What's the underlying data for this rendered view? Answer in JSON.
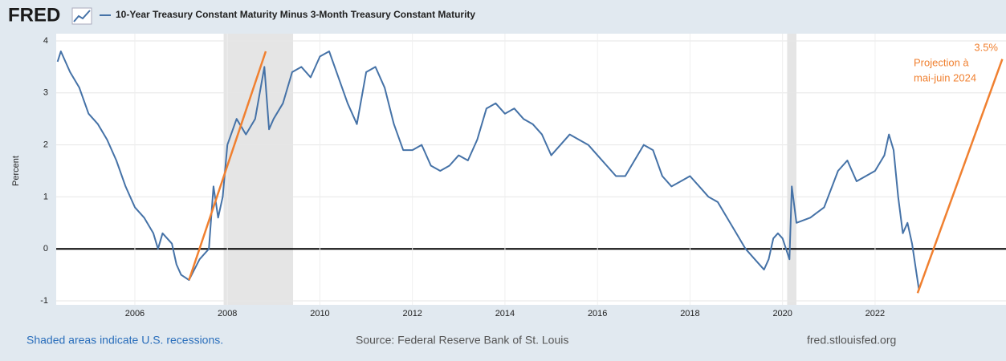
{
  "chart_data": {
    "type": "line",
    "logo": "FRED",
    "ylabel": "Percent",
    "xlim": [
      2004.3,
      2024.83
    ],
    "xticks": [
      2006,
      2008,
      2010,
      2012,
      2014,
      2016,
      2018,
      2020,
      2022
    ],
    "ylim": [
      -1,
      4
    ],
    "yticks": [
      -1,
      0,
      1,
      2,
      3,
      4
    ],
    "grid": true,
    "recessions": [
      [
        2007.92,
        2009.42
      ],
      [
        2020.1,
        2020.3
      ]
    ],
    "series": [
      {
        "name": "10-Year Treasury Constant Maturity Minus 3-Month Treasury Constant Maturity",
        "color": "#4572a7",
        "x": [
          2004.33,
          2004.4,
          2004.6,
          2004.8,
          2005.0,
          2005.2,
          2005.4,
          2005.6,
          2005.8,
          2006.0,
          2006.2,
          2006.4,
          2006.5,
          2006.6,
          2006.8,
          2006.9,
          2007.0,
          2007.17,
          2007.4,
          2007.6,
          2007.7,
          2007.8,
          2007.9,
          2008.0,
          2008.2,
          2008.4,
          2008.6,
          2008.8,
          2008.9,
          2009.0,
          2009.2,
          2009.4,
          2009.6,
          2009.8,
          2010.0,
          2010.2,
          2010.4,
          2010.6,
          2010.8,
          2011.0,
          2011.2,
          2011.4,
          2011.6,
          2011.8,
          2012.0,
          2012.2,
          2012.4,
          2012.6,
          2012.8,
          2013.0,
          2013.2,
          2013.4,
          2013.6,
          2013.8,
          2014.0,
          2014.2,
          2014.4,
          2014.6,
          2014.8,
          2015.0,
          2015.2,
          2015.4,
          2015.6,
          2015.8,
          2016.0,
          2016.2,
          2016.4,
          2016.6,
          2016.8,
          2017.0,
          2017.2,
          2017.4,
          2017.6,
          2017.8,
          2018.0,
          2018.2,
          2018.4,
          2018.6,
          2018.8,
          2019.0,
          2019.2,
          2019.4,
          2019.6,
          2019.7,
          2019.8,
          2019.9,
          2020.0,
          2020.15,
          2020.2,
          2020.3,
          2020.6,
          2020.9,
          2021.2,
          2021.4,
          2021.6,
          2021.8,
          2022.0,
          2022.2,
          2022.3,
          2022.4,
          2022.5,
          2022.6,
          2022.7,
          2022.8,
          2022.9,
          2022.95
        ],
        "values": [
          3.6,
          3.8,
          3.4,
          3.1,
          2.6,
          2.4,
          2.1,
          1.7,
          1.2,
          0.8,
          0.6,
          0.3,
          0.0,
          0.3,
          0.1,
          -0.3,
          -0.5,
          -0.6,
          -0.2,
          0.0,
          1.2,
          0.6,
          1.0,
          2.0,
          2.5,
          2.2,
          2.5,
          3.5,
          2.3,
          2.5,
          2.8,
          3.4,
          3.5,
          3.3,
          3.7,
          3.8,
          3.3,
          2.8,
          2.4,
          3.4,
          3.5,
          3.1,
          2.4,
          1.9,
          1.9,
          2.0,
          1.6,
          1.5,
          1.6,
          1.8,
          1.7,
          2.1,
          2.7,
          2.8,
          2.6,
          2.7,
          2.5,
          2.4,
          2.2,
          1.8,
          2.0,
          2.2,
          2.1,
          2.0,
          1.8,
          1.6,
          1.4,
          1.4,
          1.7,
          2.0,
          1.9,
          1.4,
          1.2,
          1.3,
          1.4,
          1.2,
          1.0,
          0.9,
          0.6,
          0.3,
          0.0,
          -0.2,
          -0.4,
          -0.2,
          0.2,
          0.3,
          0.2,
          -0.2,
          1.2,
          0.5,
          0.6,
          0.8,
          1.5,
          1.7,
          1.3,
          1.4,
          1.5,
          1.8,
          2.2,
          1.9,
          1.0,
          0.3,
          0.5,
          0.1,
          -0.5,
          -0.8
        ]
      }
    ],
    "annotation_lines": [
      {
        "color": "#f08030",
        "x": [
          2007.17,
          2008.83
        ],
        "values": [
          -0.6,
          3.8
        ]
      },
      {
        "color": "#f08030",
        "x": [
          2022.92,
          2024.75
        ],
        "values": [
          -0.85,
          3.65
        ]
      }
    ],
    "annotations": [
      "3.5%",
      "Projection à",
      "mai-juin 2024"
    ],
    "footer_left": "Shaded areas indicate U.S. recessions.",
    "footer_center": "Source: Federal Reserve Bank of St. Louis",
    "footer_right": "fred.stlouisfed.org"
  }
}
